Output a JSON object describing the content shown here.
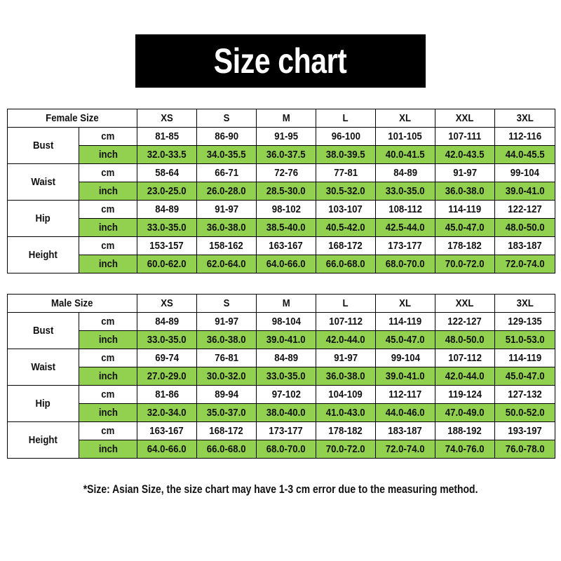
{
  "title": "Size chart",
  "accent_green": "#92d050",
  "sizes": [
    "XS",
    "S",
    "M",
    "L",
    "XL",
    "XXL",
    "3XL"
  ],
  "tables": [
    {
      "header": "Female Size",
      "measures": [
        {
          "name": "Bust",
          "cm": [
            "81-85",
            "86-90",
            "91-95",
            "96-100",
            "101-105",
            "107-111",
            "112-116"
          ],
          "inch": [
            "32.0-33.5",
            "34.0-35.5",
            "36.0-37.5",
            "38.0-39.5",
            "40.0-41.5",
            "42.0-43.5",
            "44.0-45.5"
          ]
        },
        {
          "name": "Waist",
          "cm": [
            "58-64",
            "66-71",
            "72-76",
            "77-81",
            "84-89",
            "91-97",
            "99-104"
          ],
          "inch": [
            "23.0-25.0",
            "26.0-28.0",
            "28.5-30.0",
            "30.5-32.0",
            "33.0-35.0",
            "36.0-38.0",
            "39.0-41.0"
          ]
        },
        {
          "name": "Hip",
          "cm": [
            "84-89",
            "91-97",
            "98-102",
            "103-107",
            "108-112",
            "114-119",
            "122-127"
          ],
          "inch": [
            "33.0-35.0",
            "36.0-38.0",
            "38.5-40.0",
            "40.5-42.0",
            "42.5-44.0",
            "45.0-47.0",
            "48.0-50.0"
          ]
        },
        {
          "name": "Height",
          "cm": [
            "153-157",
            "158-162",
            "163-167",
            "168-172",
            "173-177",
            "178-182",
            "183-187"
          ],
          "inch": [
            "60.0-62.0",
            "62.0-64.0",
            "64.0-66.0",
            "66.0-68.0",
            "68.0-70.0",
            "70.0-72.0",
            "72.0-74.0"
          ]
        }
      ]
    },
    {
      "header": "Male Size",
      "measures": [
        {
          "name": "Bust",
          "cm": [
            "84-89",
            "91-97",
            "98-104",
            "107-112",
            "114-119",
            "122-127",
            "129-135"
          ],
          "inch": [
            "33.0-35.0",
            "36.0-38.0",
            "39.0-41.0",
            "42.0-44.0",
            "45.0-47.0",
            "48.0-50.0",
            "51.0-53.0"
          ]
        },
        {
          "name": "Waist",
          "cm": [
            "69-74",
            "76-81",
            "84-89",
            "91-97",
            "99-104",
            "107-112",
            "114-119"
          ],
          "inch": [
            "27.0-29.0",
            "30.0-32.0",
            "33.0-35.0",
            "36.0-38.0",
            "39.0-41.0",
            "42.0-44.0",
            "45.0-47.0"
          ]
        },
        {
          "name": "Hip",
          "cm": [
            "81-86",
            "89-94",
            "97-102",
            "104-109",
            "112-117",
            "119-124",
            "127-132"
          ],
          "inch": [
            "32.0-34.0",
            "35.0-37.0",
            "38.0-40.0",
            "41.0-43.0",
            "44.0-46.0",
            "47.0-49.0",
            "50.0-52.0"
          ]
        },
        {
          "name": "Height",
          "cm": [
            "163-167",
            "168-172",
            "173-177",
            "178-182",
            "183-187",
            "188-192",
            "193-197"
          ],
          "inch": [
            "64.0-66.0",
            "66.0-68.0",
            "68.0-70.0",
            "70.0-72.0",
            "72.0-74.0",
            "74.0-76.0",
            "76.0-78.0"
          ]
        }
      ]
    }
  ],
  "units": {
    "cm": "cm",
    "inch": "inch"
  },
  "footnote": "*Size: Asian Size, the size chart may have 1-3 cm error due to the measuring method."
}
